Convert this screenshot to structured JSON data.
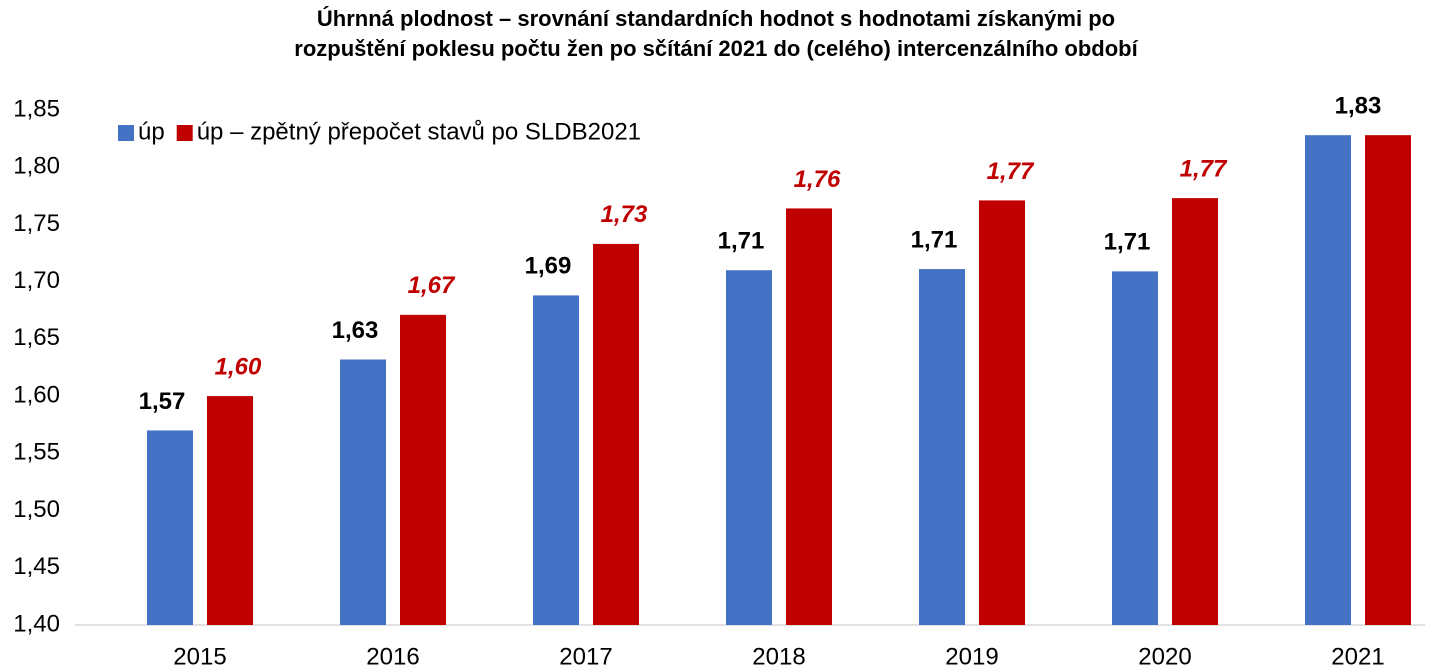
{
  "chart_data": {
    "type": "bar",
    "title": [
      "Úhrnná plodnost – srovnání standardních hodnot s hodnotami získanými po",
      "rozpuštění poklesu počtu žen po sčítání 2021 do (celého) intercenzálního období"
    ],
    "categories": [
      "2015",
      "2016",
      "2017",
      "2018",
      "2019",
      "2020",
      "2021"
    ],
    "series": [
      {
        "name": "úp",
        "color": "#4472c4",
        "values": [
          1.57,
          1.632,
          1.688,
          1.71,
          1.711,
          1.709,
          1.828
        ],
        "value_labels": [
          "1,57",
          "1,63",
          "1,69",
          "1,71",
          "1,71",
          "1,71",
          "1,83"
        ]
      },
      {
        "name": "úp – zpětný přepočet stavů po SLDB2021",
        "color": "#c00000",
        "values": [
          1.6,
          1.671,
          1.733,
          1.764,
          1.771,
          1.773,
          1.828
        ],
        "value_labels": [
          "1,60",
          "1,67",
          "1,73",
          "1,76",
          "1,77",
          "1,77",
          null
        ]
      }
    ],
    "ylim": [
      1.4,
      1.85
    ],
    "yticks": [
      {
        "value": 1.4,
        "label": "1,40"
      },
      {
        "value": 1.45,
        "label": "1,45"
      },
      {
        "value": 1.5,
        "label": "1,50"
      },
      {
        "value": 1.55,
        "label": "1,55"
      },
      {
        "value": 1.6,
        "label": "1,60"
      },
      {
        "value": 1.65,
        "label": "1,65"
      },
      {
        "value": 1.7,
        "label": "1,70"
      },
      {
        "value": 1.75,
        "label": "1,75"
      },
      {
        "value": 1.8,
        "label": "1,80"
      },
      {
        "value": 1.85,
        "label": "1,85"
      }
    ],
    "grid": false,
    "legend": "top-left"
  }
}
